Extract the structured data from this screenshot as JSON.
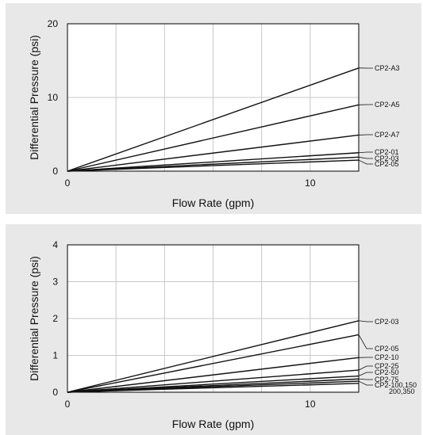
{
  "chart_data": [
    {
      "type": "line",
      "xlabel": "Flow Rate (gpm)",
      "ylabel": "Differential Pressure (psi)",
      "xlim": [
        0,
        12.0
      ],
      "ylim": [
        0,
        20
      ],
      "xticks": [
        0,
        10
      ],
      "yticks": [
        0,
        10,
        20
      ],
      "grid": true,
      "legend": "labels at right end of lines",
      "series": [
        {
          "name": "CP2-A3",
          "x": [
            0,
            12
          ],
          "y": [
            0,
            14.0
          ]
        },
        {
          "name": "CP2-A5",
          "x": [
            0,
            12
          ],
          "y": [
            0,
            9.0
          ]
        },
        {
          "name": "CP2-A7",
          "x": [
            0,
            12
          ],
          "y": [
            0,
            4.9
          ]
        },
        {
          "name": "CP2-01",
          "x": [
            0,
            12
          ],
          "y": [
            0,
            2.5
          ]
        },
        {
          "name": "CP2-03",
          "x": [
            0,
            12
          ],
          "y": [
            0,
            1.9
          ]
        },
        {
          "name": "CP2-05",
          "x": [
            0,
            12
          ],
          "y": [
            0,
            1.5
          ]
        }
      ]
    },
    {
      "type": "line",
      "xlabel": "Flow Rate (gpm)",
      "ylabel": "Differential Pressure (psi)",
      "xlim": [
        0,
        12.0
      ],
      "ylim": [
        0,
        4
      ],
      "xticks": [
        0,
        10
      ],
      "yticks": [
        0,
        1,
        2,
        3,
        4
      ],
      "grid": true,
      "legend": "labels at right end of lines",
      "series": [
        {
          "name": "CP2-03",
          "x": [
            0,
            12
          ],
          "y": [
            0,
            1.94
          ]
        },
        {
          "name": "CP2-05",
          "x": [
            0,
            12
          ],
          "y": [
            0,
            1.56
          ]
        },
        {
          "name": "CP2-10",
          "x": [
            0,
            12
          ],
          "y": [
            0,
            0.94
          ]
        },
        {
          "name": "CP2-25",
          "x": [
            0,
            12
          ],
          "y": [
            0,
            0.6
          ]
        },
        {
          "name": "CP2-50",
          "x": [
            0,
            12
          ],
          "y": [
            0,
            0.44
          ]
        },
        {
          "name": "CP2-75",
          "x": [
            0,
            12
          ],
          "y": [
            0,
            0.36
          ]
        },
        {
          "name": "CP2-100,150",
          "x": [
            0,
            12
          ],
          "y": [
            0,
            0.3
          ]
        },
        {
          "name": "200,350",
          "x": [
            0,
            12
          ],
          "y": [
            0,
            0.24
          ]
        }
      ]
    }
  ]
}
